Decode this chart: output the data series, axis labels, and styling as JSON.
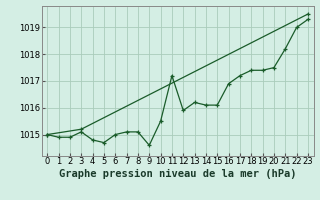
{
  "title": "Graphe pression niveau de la mer (hPa)",
  "bg_color": "#d4eee4",
  "grid_color": "#aaccbb",
  "line_color": "#1a5c2a",
  "x_ticks": [
    0,
    1,
    2,
    3,
    4,
    5,
    6,
    7,
    8,
    9,
    10,
    11,
    12,
    13,
    14,
    15,
    16,
    17,
    18,
    19,
    20,
    21,
    22,
    23
  ],
  "y_ticks": [
    1015,
    1016,
    1017,
    1018,
    1019
  ],
  "ylim": [
    1014.2,
    1019.8
  ],
  "xlim": [
    -0.5,
    23.5
  ],
  "series1_x": [
    0,
    1,
    2,
    3,
    4,
    5,
    6,
    7,
    8,
    9,
    10,
    11,
    12,
    13,
    14,
    15,
    16,
    17,
    18,
    19,
    20,
    21,
    22,
    23
  ],
  "series1_y": [
    1015.0,
    1014.9,
    1014.9,
    1015.1,
    1014.8,
    1014.7,
    1015.0,
    1015.1,
    1015.1,
    1014.6,
    1015.5,
    1017.2,
    1015.9,
    1016.2,
    1016.1,
    1016.1,
    1016.9,
    1017.2,
    1017.4,
    1017.4,
    1017.5,
    1018.2,
    1019.0,
    1019.3
  ],
  "series2_x": [
    0,
    3,
    23
  ],
  "series2_y": [
    1015.0,
    1015.2,
    1019.5
  ],
  "title_fontsize": 7.5,
  "tick_fontsize": 6.0
}
